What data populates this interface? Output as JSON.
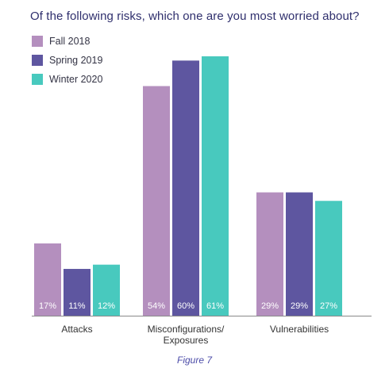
{
  "chart_data": {
    "type": "bar",
    "title": "Of the following risks, which one are you most worried about?",
    "categories": [
      "Attacks",
      "Misconfigurations/\nExposures",
      "Vulnerabilities"
    ],
    "series": [
      {
        "name": "Fall 2018",
        "values": [
          17,
          54,
          29
        ],
        "labels": [
          "17%",
          "54%",
          "29%"
        ],
        "color": "#b48fbe"
      },
      {
        "name": "Spring 2019",
        "values": [
          11,
          60,
          29
        ],
        "labels": [
          "11%",
          "60%",
          "29%"
        ],
        "color": "#5e56a0"
      },
      {
        "name": "Winter 2020",
        "values": [
          12,
          61,
          27
        ],
        "labels": [
          "12%",
          "61%",
          "27%"
        ],
        "color": "#48c9be"
      }
    ],
    "ylim": [
      0,
      61
    ],
    "grid": false,
    "legend_position": "top-left"
  },
  "caption": "Figure 7"
}
